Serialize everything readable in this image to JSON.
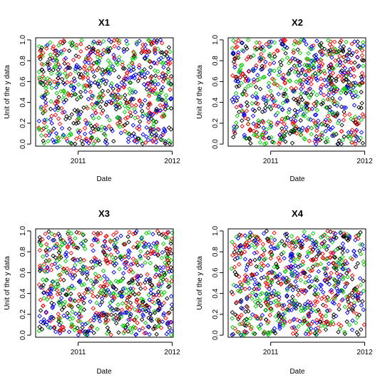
{
  "chart_data": [
    {
      "type": "scatter",
      "title": "X1",
      "xlabel": "Date",
      "ylabel": "Unit of the y data",
      "xlim": [
        "2010-07-20",
        "2012-01-05"
      ],
      "ylim": [
        -0.02,
        1.02
      ],
      "x_ticks": [
        {
          "value": "2011-01-01",
          "label": "2011"
        },
        {
          "value": "2012-01-01",
          "label": "2012"
        }
      ],
      "y_ticks": [
        0.0,
        0.2,
        0.4,
        0.6,
        0.8,
        1.0
      ],
      "y_tick_labels": [
        "0.0",
        "0.2",
        "0.4",
        "0.6",
        "0.8",
        "1.0"
      ],
      "x_date_range": [
        "2010-08-01",
        "2011-12-31"
      ],
      "y_range": [
        0.0,
        1.0
      ],
      "marker": "diamond-open",
      "series": [
        {
          "color": "#0000ff",
          "count": 200
        },
        {
          "color": "#ff0000",
          "count": 200
        },
        {
          "color": "#00cc00",
          "count": 200
        },
        {
          "color": "#000000",
          "count": 200
        }
      ]
    },
    {
      "type": "scatter",
      "title": "X2",
      "xlabel": "Date",
      "ylabel": "Unit of the y data",
      "xlim": [
        "2010-07-20",
        "2012-01-05"
      ],
      "ylim": [
        -0.02,
        1.02
      ],
      "x_ticks": [
        {
          "value": "2011-01-01",
          "label": "2011"
        },
        {
          "value": "2012-01-01",
          "label": "2012"
        }
      ],
      "y_ticks": [
        0.0,
        0.2,
        0.4,
        0.6,
        0.8,
        1.0
      ],
      "y_tick_labels": [
        "0.0",
        "0.2",
        "0.4",
        "0.6",
        "0.8",
        "1.0"
      ],
      "x_date_range": [
        "2010-08-01",
        "2011-12-31"
      ],
      "y_range": [
        0.0,
        1.0
      ],
      "marker": "diamond-open",
      "series": [
        {
          "color": "#0000ff",
          "count": 200
        },
        {
          "color": "#ff0000",
          "count": 200
        },
        {
          "color": "#00cc00",
          "count": 200
        },
        {
          "color": "#000000",
          "count": 200
        }
      ]
    },
    {
      "type": "scatter",
      "title": "X3",
      "xlabel": "Date",
      "ylabel": "Unit of the y data",
      "xlim": [
        "2010-07-20",
        "2012-01-05"
      ],
      "ylim": [
        -0.02,
        1.02
      ],
      "x_ticks": [
        {
          "value": "2011-01-01",
          "label": "2011"
        },
        {
          "value": "2012-01-01",
          "label": "2012"
        }
      ],
      "y_ticks": [
        0.0,
        0.2,
        0.4,
        0.6,
        0.8,
        1.0
      ],
      "y_tick_labels": [
        "0.0",
        "0.2",
        "0.4",
        "0.6",
        "0.8",
        "1.0"
      ],
      "x_date_range": [
        "2010-08-01",
        "2011-12-31"
      ],
      "y_range": [
        0.0,
        1.0
      ],
      "marker": "diamond-open",
      "series": [
        {
          "color": "#0000ff",
          "count": 200
        },
        {
          "color": "#ff0000",
          "count": 200
        },
        {
          "color": "#00cc00",
          "count": 200
        },
        {
          "color": "#000000",
          "count": 200
        }
      ]
    },
    {
      "type": "scatter",
      "title": "X4",
      "xlabel": "Date",
      "ylabel": "Unit of the y data",
      "xlim": [
        "2010-07-20",
        "2012-01-05"
      ],
      "ylim": [
        -0.02,
        1.02
      ],
      "x_ticks": [
        {
          "value": "2011-01-01",
          "label": "2011"
        },
        {
          "value": "2012-01-01",
          "label": "2012"
        }
      ],
      "y_ticks": [
        0.0,
        0.2,
        0.4,
        0.6,
        0.8,
        1.0
      ],
      "y_tick_labels": [
        "0.0",
        "0.2",
        "0.4",
        "0.6",
        "0.8",
        "1.0"
      ],
      "x_date_range": [
        "2010-08-01",
        "2011-12-31"
      ],
      "y_range": [
        0.0,
        1.0
      ],
      "marker": "diamond-open",
      "series": [
        {
          "color": "#0000ff",
          "count": 200
        },
        {
          "color": "#ff0000",
          "count": 200
        },
        {
          "color": "#00cc00",
          "count": 200
        },
        {
          "color": "#000000",
          "count": 200
        }
      ]
    }
  ]
}
